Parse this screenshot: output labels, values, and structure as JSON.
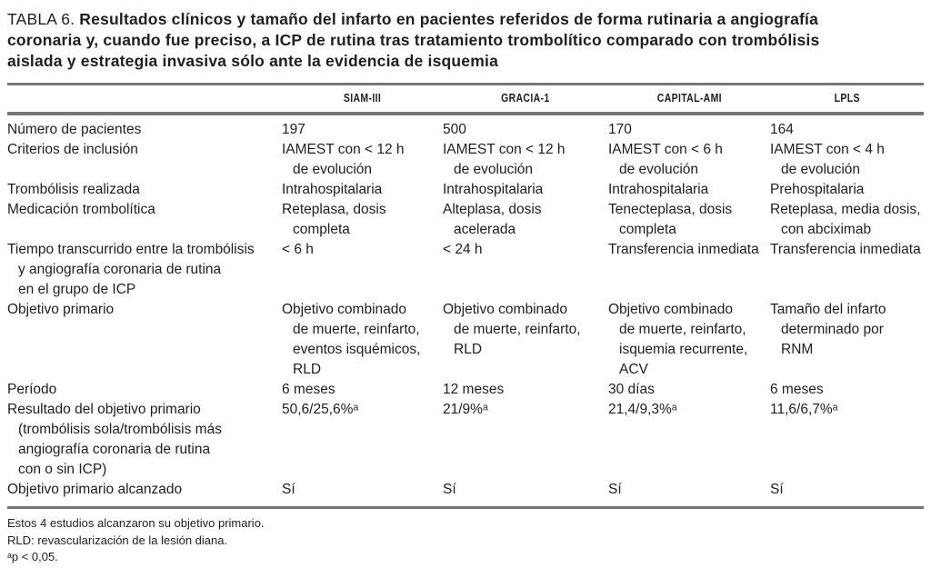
{
  "table": {
    "label": "TABLA 6.",
    "title": "Resultados clínicos y tamaño del infarto en pacientes referidos de forma rutinaria a angiografía coronaria y, cuando fue preciso, a ICP de rutina tras tratamiento trombolítico comparado con trombólisis aislada y estrategia invasiva sólo ante la evidencia de isquemia",
    "caption_lines": [
      "Resultados clínicos y tamaño del infarto en pacientes referidos de forma rutinaria a angiografía",
      "coronaria y, cuando fue preciso, a ICP de rutina tras tratamiento trombolítico comparado con trombólisis",
      "aislada y estrategia invasiva sólo ante la evidencia de isquemia"
    ],
    "columns": [
      "SIAM-III",
      "GRACIA-1",
      "CAPITAL-AMI",
      "LPLS"
    ],
    "rows": [
      {
        "label": [
          "Número de pacientes"
        ],
        "values": [
          [
            "197"
          ],
          [
            "500"
          ],
          [
            "170"
          ],
          [
            "164"
          ]
        ]
      },
      {
        "label": [
          "Criterios de inclusión"
        ],
        "values": [
          [
            "IAMEST con < 12 h",
            "de evolución"
          ],
          [
            "IAMEST con < 12 h",
            "de evolución"
          ],
          [
            "IAMEST con < 6 h",
            "de evolución"
          ],
          [
            "IAMEST con < 4 h",
            "de evolución"
          ]
        ]
      },
      {
        "label": [
          "Trombólisis realizada"
        ],
        "values": [
          [
            "Intrahospitalaria"
          ],
          [
            "Intrahospitalaria"
          ],
          [
            "Intrahospitalaria"
          ],
          [
            "Prehospitalaria"
          ]
        ]
      },
      {
        "label": [
          "Medicación trombolítica"
        ],
        "values": [
          [
            "Reteplasa, dosis",
            "completa"
          ],
          [
            "Alteplasa, dosis",
            "acelerada"
          ],
          [
            "Tenecteplasa, dosis",
            "completa"
          ],
          [
            "Reteplasa, media dosis,",
            "con abciximab"
          ]
        ]
      },
      {
        "label": [
          "Tiempo transcurrido entre la trombólisis",
          "y angiografía coronaria de rutina",
          "en el grupo de ICP"
        ],
        "values": [
          [
            "< 6 h"
          ],
          [
            "< 24 h"
          ],
          [
            "Transferencia inmediata"
          ],
          [
            "Transferencia inmediata"
          ]
        ]
      },
      {
        "label": [
          "Objetivo primario"
        ],
        "values": [
          [
            "Objetivo combinado",
            "de muerte, reinfarto,",
            "eventos isquémicos,",
            "RLD"
          ],
          [
            "Objetivo combinado",
            "de muerte, reinfarto,",
            "RLD"
          ],
          [
            "Objetivo combinado",
            "de muerte, reinfarto,",
            "isquemia recurrente,",
            "ACV"
          ],
          [
            "Tamaño del infarto",
            "determinado por",
            "RNM"
          ]
        ]
      },
      {
        "label": [
          "Período"
        ],
        "values": [
          [
            "6 meses"
          ],
          [
            "12 meses"
          ],
          [
            "30 días"
          ],
          [
            "6 meses"
          ]
        ]
      },
      {
        "label": [
          "Resultado del objetivo primario",
          "(trombólisis sola/trombólisis más",
          "angiografía coronaria de rutina",
          "con o sin ICP)"
        ],
        "values": [
          [
            "50,6/25,6%ᵃ"
          ],
          [
            "21/9%ᵃ"
          ],
          [
            "21,4/9,3%ᵃ"
          ],
          [
            "11,6/6,7%ᵃ"
          ]
        ]
      },
      {
        "label": [
          "Objetivo primario alcanzado"
        ],
        "values": [
          [
            "Sí"
          ],
          [
            "Sí"
          ],
          [
            "Sí"
          ],
          [
            "Sí"
          ]
        ]
      }
    ],
    "footnotes": [
      "Estos 4 estudios alcanzaron su objetivo primario.",
      "RLD: revascularización de la lesión diana.",
      "ᵃp < 0,05."
    ],
    "colors": {
      "text": "#1f1f1f",
      "rule": "#767676",
      "background": "#ffffff"
    }
  }
}
